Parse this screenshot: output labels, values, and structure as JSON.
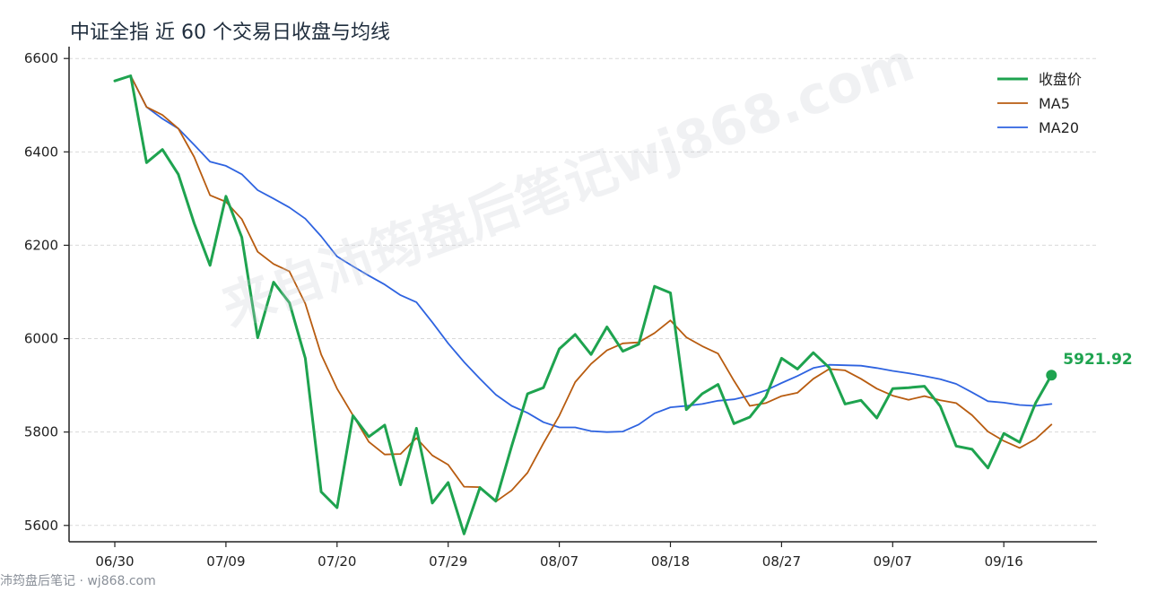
{
  "title": "中证全指 近 60 个交易日收盘与均线",
  "watermark": "来自沛筠盘后笔记wj868.com",
  "footer": "沛筠盘后笔记 · wj868.com",
  "colors": {
    "close": "#1ea34f",
    "ma5": "#b85c10",
    "ma20": "#2e63e0",
    "axis": "#222222",
    "grid": "#d9d9d9"
  },
  "chart_data": {
    "type": "line",
    "title": "中证全指 近 60 个交易日收盘与均线",
    "xlabel": "",
    "ylabel": "",
    "ylim": [
      5565,
      6610
    ],
    "yticks": [
      5600,
      5800,
      6000,
      6200,
      6400,
      6600
    ],
    "grid": true,
    "legend_position": "top-right",
    "x_tick_labels": [
      {
        "index": 0,
        "label": "06/30"
      },
      {
        "index": 7,
        "label": "07/09"
      },
      {
        "index": 14,
        "label": "07/20"
      },
      {
        "index": 21,
        "label": "07/29"
      },
      {
        "index": 28,
        "label": "08/07"
      },
      {
        "index": 35,
        "label": "08/18"
      },
      {
        "index": 42,
        "label": "08/27"
      },
      {
        "index": 49,
        "label": "09/07"
      },
      {
        "index": 56,
        "label": "09/16"
      }
    ],
    "last_value_label": "5921.92",
    "series": [
      {
        "name": "收盘价",
        "key": "close",
        "values": [
          6552,
          6563,
          6377,
          6405,
          6352,
          6247,
          6157,
          6305,
          6217,
          6002,
          6121,
          6077,
          5958,
          5672,
          5638,
          5835,
          5790,
          5815,
          5687,
          5808,
          5648,
          5692,
          5582,
          5681,
          5652,
          5770,
          5882,
          5895,
          5978,
          6009,
          5966,
          6025,
          5973,
          5988,
          6112,
          6098,
          5848,
          5882,
          5902,
          5818,
          5832,
          5875,
          5958,
          5935,
          5970,
          5938,
          5860,
          5868,
          5830,
          5893,
          5895,
          5898,
          5855,
          5770,
          5763,
          5723,
          5797,
          5778,
          5862,
          5921.92
        ]
      },
      {
        "name": "MA5",
        "key": "ma5",
        "values": [
          6552,
          6563,
          6496,
          6479,
          6450,
          6389,
          6307,
          6293,
          6256,
          6186,
          6160,
          6144,
          6075,
          5966,
          5893,
          5836,
          5779,
          5752,
          5753,
          5787,
          5750,
          5730,
          5683,
          5682,
          5651,
          5675,
          5713,
          5776,
          5835,
          5907,
          5946,
          5975,
          5990,
          5992,
          6012,
          6039,
          6003,
          5984,
          5968,
          5910,
          5856,
          5862,
          5877,
          5884,
          5914,
          5935,
          5932,
          5914,
          5893,
          5878,
          5869,
          5877,
          5868,
          5862,
          5836,
          5801,
          5781,
          5766,
          5785,
          5816
        ]
      },
      {
        "name": "MA20",
        "key": "ma20",
        "values": [
          6552,
          6563,
          6496,
          6471,
          6450,
          6415,
          6379,
          6370,
          6352,
          6318,
          6300,
          6281,
          6257,
          6219,
          6176,
          6155,
          6135,
          6116,
          6093,
          6078,
          6035,
          5990,
          5950,
          5914,
          5880,
          5856,
          5841,
          5821,
          5810,
          5810,
          5802,
          5800,
          5801,
          5816,
          5840,
          5853,
          5856,
          5860,
          5867,
          5870,
          5878,
          5889,
          5905,
          5920,
          5937,
          5944,
          5943,
          5942,
          5937,
          5931,
          5926,
          5920,
          5913,
          5903,
          5885,
          5866,
          5863,
          5858,
          5856,
          5860
        ]
      }
    ]
  }
}
